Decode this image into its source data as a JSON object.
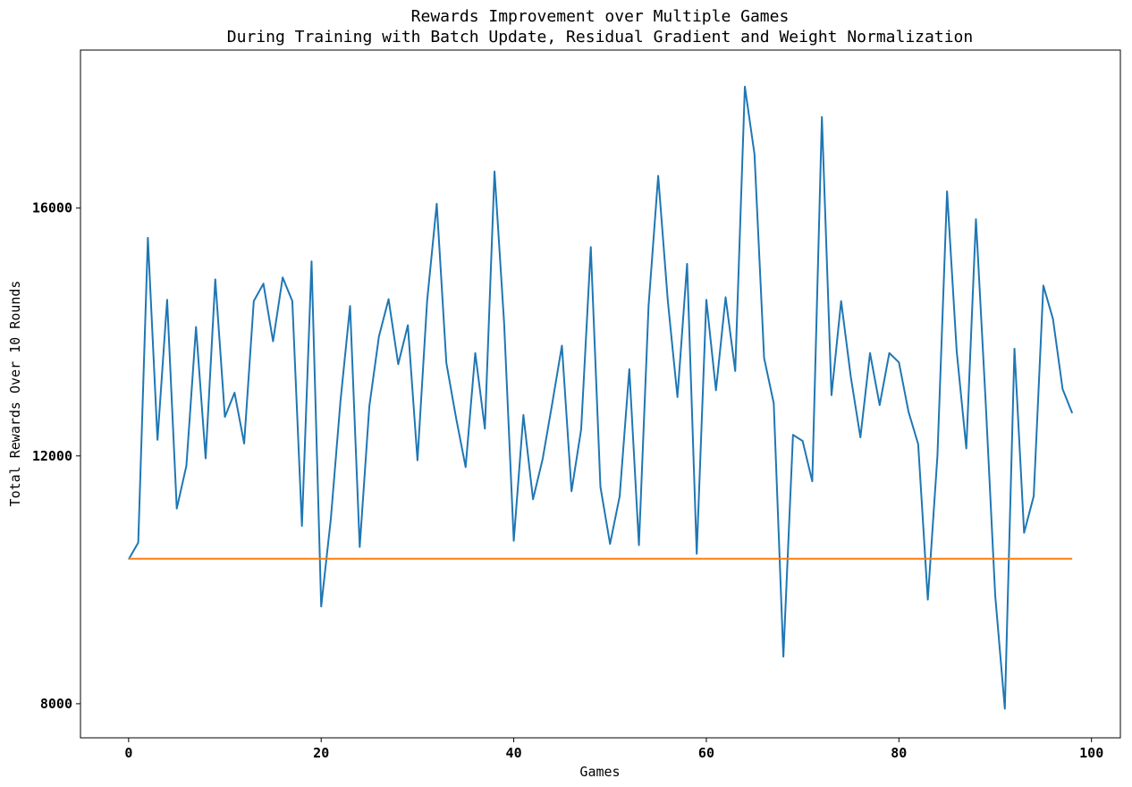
{
  "chart_data": {
    "type": "line",
    "title": "Rewards Improvement over Multiple Games",
    "subtitle": "During Training with Batch Update, Residual Gradient and Weight Normalization",
    "xlabel": "Games",
    "ylabel": "Total Rewards Over 10 Rounds",
    "xlim": [
      -5,
      103
    ],
    "ylim": [
      7450,
      18550
    ],
    "x_ticks": [
      0,
      20,
      40,
      60,
      80,
      100
    ],
    "y_ticks": [
      8000,
      12000,
      16000
    ],
    "grid": false,
    "legend": "none",
    "series": [
      {
        "color": "#1f77b4",
        "x": [
          0,
          1,
          2,
          3,
          4,
          5,
          6,
          7,
          8,
          9,
          10,
          11,
          12,
          13,
          14,
          15,
          16,
          17,
          18,
          19,
          20,
          21,
          22,
          23,
          24,
          25,
          26,
          27,
          28,
          29,
          30,
          31,
          32,
          33,
          34,
          35,
          36,
          37,
          38,
          39,
          40,
          41,
          42,
          43,
          44,
          45,
          46,
          47,
          48,
          49,
          50,
          51,
          52,
          53,
          54,
          55,
          56,
          57,
          58,
          59,
          60,
          61,
          62,
          63,
          64,
          65,
          66,
          67,
          68,
          69,
          70,
          71,
          72,
          73,
          74,
          75,
          76,
          77,
          78,
          79,
          80,
          81,
          82,
          83,
          84,
          85,
          86,
          87,
          88,
          89,
          90,
          91,
          92,
          93,
          94,
          95,
          96,
          97,
          98
        ],
        "values": [
          10330,
          10600,
          15520,
          12260,
          14520,
          11150,
          11840,
          14080,
          11960,
          14850,
          12630,
          13020,
          12200,
          14500,
          14780,
          13850,
          14880,
          14500,
          10870,
          15140,
          9570,
          10980,
          12880,
          14420,
          10530,
          12800,
          13930,
          14530,
          13480,
          14110,
          11930,
          14500,
          16070,
          13500,
          12620,
          11820,
          13660,
          12440,
          16590,
          14140,
          10630,
          12660,
          11300,
          11950,
          12850,
          13780,
          11430,
          12430,
          15370,
          11500,
          10580,
          11350,
          13400,
          10560,
          14420,
          16520,
          14500,
          12950,
          15100,
          10420,
          14520,
          13060,
          14560,
          13370,
          17960,
          16870,
          13580,
          12850,
          8760,
          12340,
          12240,
          11590,
          17470,
          12980,
          14500,
          13280,
          12300,
          13660,
          12820,
          13660,
          13510,
          12710,
          12190,
          9680,
          12000,
          16270,
          13690,
          12120,
          15820,
          12900,
          9750,
          7920,
          13730,
          10760,
          11350,
          14750,
          14210,
          13080,
          12690
        ]
      },
      {
        "color": "#ff7f0e",
        "x": [
          0,
          98
        ],
        "values": [
          10340,
          10340
        ]
      }
    ]
  }
}
